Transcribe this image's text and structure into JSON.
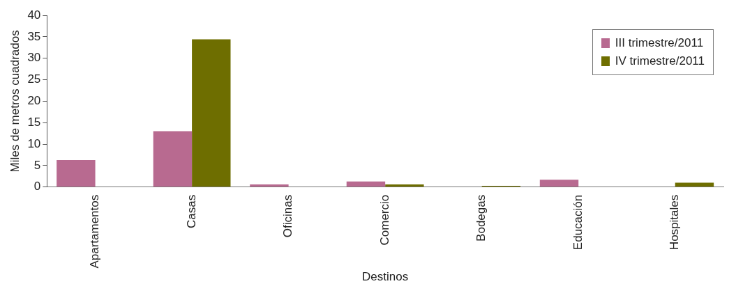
{
  "chart_data": {
    "type": "bar",
    "xlabel": "Destinos",
    "ylabel": "Miles de metros cuadrados",
    "categories": [
      "Apartamentos",
      "Casas",
      "Oficinas",
      "Comercio",
      "Bodegas",
      "Educación",
      "Hospitales"
    ],
    "series": [
      {
        "name": "III trimestre/2011",
        "color": "#b86a90",
        "values": [
          6.3,
          13.0,
          0.6,
          1.3,
          0,
          1.7,
          0
        ]
      },
      {
        "name": "IV trimestre/2011",
        "color": "#6e6e00",
        "values": [
          0,
          34.4,
          0,
          0.6,
          0.3,
          0,
          1.0
        ]
      }
    ],
    "ylim": [
      0,
      40
    ],
    "yticks": [
      0,
      5,
      10,
      15,
      20,
      25,
      30,
      35,
      40
    ],
    "grid": false,
    "legend": "top right"
  }
}
